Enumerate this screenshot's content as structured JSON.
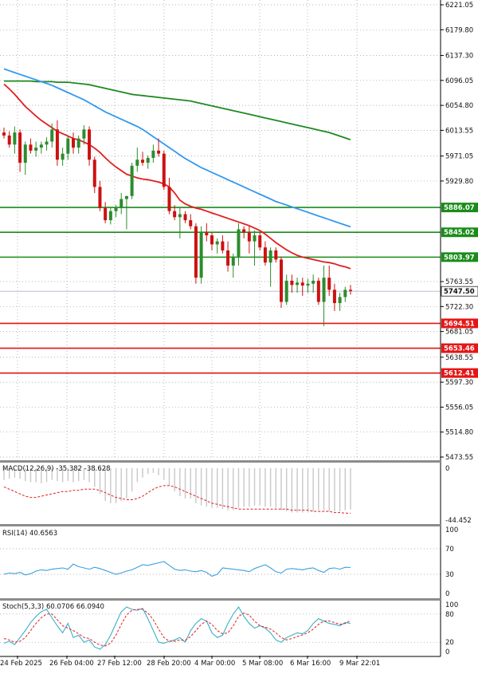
{
  "chart_data": {
    "type": "candlestick",
    "main": {
      "ylim": [
        5473.55,
        6221.05
      ],
      "y_ticks": [
        "6221.05",
        "6179.80",
        "6137.30",
        "6096.05",
        "6054.80",
        "6013.55",
        "5971.05",
        "5929.80",
        "5886.07",
        "5845.02",
        "5803.97",
        "5763.55",
        "5747.50",
        "5722.30",
        "5694.51",
        "5681.05",
        "5653.46",
        "5638.55",
        "5612.41",
        "5597.30",
        "5556.05",
        "5514.80",
        "5473.55"
      ],
      "current_price": 5747.5,
      "current_price_label": "5747.50",
      "green_levels": [
        {
          "value": 5886.07,
          "label": "5886.07"
        },
        {
          "value": 5845.02,
          "label": "5845.02"
        },
        {
          "value": 5803.97,
          "label": "5803.97"
        }
      ],
      "red_levels": [
        {
          "value": 5694.51,
          "label": "5694.51"
        },
        {
          "value": 5653.46,
          "label": "5653.46"
        },
        {
          "value": 5612.41,
          "label": "5612.41"
        }
      ],
      "candles": [
        [
          6010,
          6018,
          6000,
          6005
        ],
        [
          6005,
          6012,
          5985,
          5990
        ],
        [
          5990,
          6020,
          5975,
          6010
        ],
        [
          6010,
          6015,
          5945,
          5960
        ],
        [
          5960,
          5995,
          5940,
          5990
        ],
        [
          5990,
          6000,
          5975,
          5980
        ],
        [
          5980,
          5995,
          5970,
          5985
        ],
        [
          5985,
          5995,
          5975,
          5990
        ],
        [
          5990,
          6002,
          5980,
          5995
        ],
        [
          5995,
          6025,
          5985,
          6015
        ],
        [
          6015,
          6030,
          5955,
          5965
        ],
        [
          5965,
          5985,
          5955,
          5975
        ],
        [
          5975,
          6005,
          5965,
          6000
        ],
        [
          6000,
          6010,
          5975,
          5985
        ],
        [
          5985,
          6005,
          5975,
          6000
        ],
        [
          6000,
          6022,
          5990,
          6015
        ],
        [
          6015,
          6020,
          5955,
          5965
        ],
        [
          5965,
          5970,
          5910,
          5920
        ],
        [
          5920,
          5930,
          5880,
          5885
        ],
        [
          5885,
          5895,
          5860,
          5865
        ],
        [
          5865,
          5885,
          5858,
          5880
        ],
        [
          5880,
          5890,
          5870,
          5885
        ],
        [
          5885,
          5910,
          5875,
          5900
        ],
        [
          5900,
          5905,
          5850,
          5905
        ],
        [
          5905,
          5960,
          5900,
          5955
        ],
        [
          5955,
          5985,
          5945,
          5965
        ],
        [
          5965,
          5978,
          5955,
          5960
        ],
        [
          5960,
          5972,
          5950,
          5968
        ],
        [
          5968,
          5990,
          5960,
          5980
        ],
        [
          5980,
          6000,
          5970,
          5975
        ],
        [
          5975,
          5980,
          5915,
          5920
        ],
        [
          5920,
          5935,
          5875,
          5880
        ],
        [
          5880,
          5890,
          5865,
          5870
        ],
        [
          5870,
          5885,
          5835,
          5875
        ],
        [
          5875,
          5880,
          5860,
          5865
        ],
        [
          5865,
          5875,
          5850,
          5855
        ],
        [
          5855,
          5860,
          5760,
          5770
        ],
        [
          5770,
          5855,
          5760,
          5845
        ],
        [
          5845,
          5860,
          5830,
          5840
        ],
        [
          5840,
          5845,
          5815,
          5825
        ],
        [
          5825,
          5835,
          5810,
          5830
        ],
        [
          5830,
          5840,
          5810,
          5815
        ],
        [
          5815,
          5830,
          5780,
          5790
        ],
        [
          5790,
          5810,
          5770,
          5805
        ],
        [
          5805,
          5860,
          5790,
          5850
        ],
        [
          5850,
          5855,
          5835,
          5845
        ],
        [
          5845,
          5855,
          5810,
          5830
        ],
        [
          5830,
          5848,
          5790,
          5840
        ],
        [
          5840,
          5845,
          5815,
          5820
        ],
        [
          5820,
          5830,
          5790,
          5795
        ],
        [
          5795,
          5820,
          5755,
          5815
        ],
        [
          5815,
          5820,
          5795,
          5800
        ],
        [
          5800,
          5805,
          5720,
          5730
        ],
        [
          5730,
          5775,
          5725,
          5765
        ],
        [
          5765,
          5775,
          5745,
          5758
        ],
        [
          5758,
          5770,
          5745,
          5762
        ],
        [
          5762,
          5770,
          5740,
          5757
        ],
        [
          5757,
          5768,
          5745,
          5760
        ],
        [
          5760,
          5775,
          5745,
          5765
        ],
        [
          5765,
          5770,
          5725,
          5730
        ],
        [
          5730,
          5790,
          5690,
          5770
        ],
        [
          5770,
          5790,
          5740,
          5750
        ],
        [
          5750,
          5760,
          5715,
          5728
        ],
        [
          5728,
          5745,
          5715,
          5738
        ],
        [
          5738,
          5755,
          5730,
          5750
        ],
        [
          5750,
          5758,
          5742,
          5748
        ]
      ],
      "ma_red": [
        6090,
        6082,
        6073,
        6063,
        6053,
        6045,
        6037,
        6030,
        6024,
        6018,
        6012,
        6008,
        6004,
        6000,
        5998,
        5994,
        5990,
        5984,
        5977,
        5968,
        5960,
        5953,
        5947,
        5941,
        5938,
        5935,
        5933,
        5932,
        5930,
        5928,
        5925,
        5920,
        5910,
        5898,
        5892,
        5888,
        5885,
        5883,
        5880,
        5877,
        5874,
        5871,
        5868,
        5865,
        5862,
        5859,
        5856,
        5852,
        5848,
        5842,
        5835,
        5828,
        5822,
        5816,
        5811,
        5807,
        5804,
        5802,
        5800,
        5798,
        5796,
        5795,
        5793,
        5790,
        5788,
        5785
      ],
      "ma_blue": [
        6115,
        6112,
        6109,
        6106,
        6103,
        6100,
        6097,
        6094,
        6091,
        6088,
        6084,
        6080,
        6076,
        6072,
        6068,
        6064,
        6059,
        6054,
        6049,
        6044,
        6040,
        6036,
        6032,
        6028,
        6024,
        6020,
        6015,
        6009,
        6003,
        5997,
        5991,
        5985,
        5979,
        5973,
        5967,
        5962,
        5957,
        5952,
        5948,
        5944,
        5940,
        5936,
        5932,
        5928,
        5924,
        5920,
        5916,
        5912,
        5908,
        5904,
        5900,
        5896,
        5893,
        5890,
        5887,
        5884,
        5881,
        5878,
        5875,
        5872,
        5869,
        5866,
        5863,
        5860,
        5857,
        5854
      ],
      "ma_green": [
        6095,
        6095,
        6095,
        6095,
        6095,
        6095,
        6094,
        6094,
        6094,
        6094,
        6093,
        6093,
        6093,
        6092,
        6091,
        6090,
        6089,
        6087,
        6085,
        6083,
        6081,
        6079,
        6077,
        6075,
        6073,
        6072,
        6071,
        6070,
        6069,
        6068,
        6067,
        6066,
        6065,
        6064,
        6063,
        6062,
        6060,
        6058,
        6056,
        6054,
        6052,
        6050,
        6048,
        6046,
        6044,
        6042,
        6040,
        6038,
        6036,
        6034,
        6032,
        6030,
        6028,
        6026,
        6024,
        6022,
        6020,
        6018,
        6016,
        6014,
        6012,
        6010,
        6007,
        6004,
        6001,
        5998
      ]
    },
    "macd": {
      "label": "MACD(12,26,9) -35.382 -38.628",
      "top_tick": "0",
      "bottom_tick": "-44.452",
      "ylim": [
        -44.452,
        0
      ],
      "bars": [
        -10,
        -9,
        -8,
        -9,
        -11,
        -12,
        -12,
        -13,
        -12,
        -10,
        -11,
        -12,
        -11,
        -12,
        -11,
        -10,
        -12,
        -16,
        -22,
        -28,
        -30,
        -30,
        -28,
        -26,
        -20,
        -12,
        -8,
        -5,
        -4,
        -6,
        -10,
        -15,
        -20,
        -24,
        -26,
        -26,
        -30,
        -32,
        -33,
        -34,
        -34,
        -35,
        -36,
        -36,
        -34,
        -33,
        -33,
        -32,
        -32,
        -33,
        -33,
        -34,
        -36,
        -37,
        -38,
        -38,
        -38,
        -38,
        -37,
        -36,
        -36,
        -37,
        -37,
        -37,
        -36,
        -35.4
      ],
      "signal": [
        -16,
        -18,
        -20,
        -22,
        -24,
        -25,
        -25,
        -24,
        -23,
        -22,
        -21,
        -20,
        -20,
        -19,
        -19,
        -18,
        -18,
        -18,
        -19,
        -21,
        -23,
        -25,
        -26,
        -27,
        -27,
        -26,
        -24,
        -21,
        -18,
        -16,
        -15,
        -15,
        -16,
        -18,
        -20,
        -22,
        -24,
        -26,
        -28,
        -30,
        -31,
        -32,
        -33,
        -34,
        -35,
        -35,
        -35,
        -35,
        -35,
        -35,
        -35,
        -35,
        -35,
        -35,
        -36,
        -36,
        -36,
        -36,
        -37,
        -37,
        -37,
        -37,
        -38,
        -38,
        -38.5,
        -38.6
      ]
    },
    "rsi": {
      "label": "RSI(14) 40.6563",
      "ticks": [
        "100",
        "70",
        "30",
        "0"
      ],
      "ylim": [
        0,
        100
      ],
      "values": [
        30,
        32,
        31,
        33,
        29,
        31,
        35,
        37,
        36,
        38,
        39,
        40,
        38,
        46,
        42,
        40,
        38,
        41,
        39,
        36,
        33,
        30,
        32,
        35,
        37,
        41,
        45,
        44,
        46,
        48,
        50,
        44,
        38,
        36,
        37,
        35,
        34,
        36,
        33,
        27,
        30,
        40,
        39,
        38,
        37,
        36,
        34,
        39,
        42,
        45,
        40,
        34,
        32,
        38,
        39,
        38,
        37,
        39,
        40,
        36,
        33,
        39,
        40,
        38,
        41,
        40.6
      ]
    },
    "stoch": {
      "label": "Stoch(5,3,3) 60.0706 66.0940",
      "ticks": [
        "100",
        "80",
        "20",
        "0"
      ],
      "ylim": [
        0,
        100
      ],
      "k": [
        18,
        22,
        15,
        30,
        45,
        62,
        75,
        85,
        90,
        72,
        55,
        40,
        60,
        30,
        35,
        20,
        25,
        10,
        5,
        15,
        35,
        60,
        85,
        95,
        90,
        88,
        92,
        70,
        45,
        20,
        18,
        22,
        25,
        30,
        20,
        45,
        60,
        70,
        65,
        40,
        30,
        35,
        60,
        80,
        95,
        75,
        60,
        50,
        55,
        50,
        40,
        25,
        20,
        30,
        35,
        40,
        38,
        45,
        60,
        70,
        65,
        60,
        58,
        55,
        62,
        60.1
      ],
      "d": [
        28,
        25,
        20,
        22,
        30,
        45,
        60,
        72,
        80,
        80,
        68,
        55,
        50,
        45,
        38,
        30,
        28,
        20,
        14,
        12,
        18,
        35,
        58,
        78,
        88,
        90,
        90,
        82,
        68,
        48,
        30,
        22,
        22,
        25,
        24,
        32,
        45,
        58,
        65,
        58,
        45,
        38,
        40,
        55,
        75,
        82,
        78,
        65,
        55,
        52,
        48,
        40,
        30,
        25,
        28,
        32,
        36,
        40,
        48,
        58,
        65,
        65,
        62,
        58,
        60,
        66.1
      ]
    },
    "x_labels": [
      "24 Feb 2025",
      "26 Feb 04:00",
      "27 Feb 12:00",
      "28 Feb 20:00",
      "4 Mar 00:00",
      "5 Mar 08:00",
      "6 Mar 16:00",
      "9 Mar 22:01"
    ],
    "colors": {
      "bull": "#2e8b2e",
      "bear": "#cc1111",
      "ma_red": "#e02020",
      "ma_blue": "#3399ee",
      "ma_green": "#1f8a1f",
      "level_green": "#1a8c1a",
      "level_red": "#e51515",
      "grid": "#9a9a9a",
      "macd_bar": "#c8c8c8",
      "macd_signal": "#e02020",
      "rsi": "#3aa0e0",
      "stoch_k": "#3ab0c8",
      "stoch_d": "#e02020"
    }
  }
}
